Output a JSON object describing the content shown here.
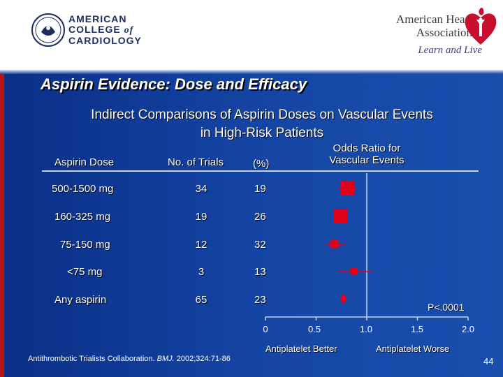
{
  "header": {
    "acc_line1": "AMERICAN",
    "acc_line2": "COLLEGE",
    "acc_of": "of",
    "acc_line3": "CARDIOLOGY",
    "aha_line1": "American Heart",
    "aha_line2": "Association",
    "aha_tagline": "Learn and Live",
    "accent_red": "#c8102e"
  },
  "title": "Aspirin Evidence: Dose and Efficacy",
  "subtitle_line1": "Indirect Comparisons of Aspirin Doses on Vascular Events",
  "subtitle_line2": "in High-Risk Patients",
  "columns": {
    "dose": "Aspirin Dose",
    "trials": "No. of Trials",
    "pct": "(%)",
    "or_line1": "Odds Ratio for",
    "or_line2": "Vascular Events"
  },
  "rows": [
    {
      "dose": "500-1500 mg",
      "trials": "34",
      "pct": "19"
    },
    {
      "dose": "160-325 mg",
      "trials": "19",
      "pct": "26"
    },
    {
      "dose": "75-150 mg",
      "trials": "12",
      "pct": "32"
    },
    {
      "dose": "<75 mg",
      "trials": "3",
      "pct": "13"
    },
    {
      "dose": "Any aspirin",
      "trials": "65",
      "pct": "23"
    }
  ],
  "p_value": "P<.0001",
  "favor_left": "Antiplatelet Better",
  "favor_right": "Antiplatelet Worse",
  "citation_pre": "Antithrombotic Trialists Collaboration. ",
  "citation_journal": "BMJ.",
  "citation_post": " 2002;324:71-86",
  "slide_number": "44",
  "chart_data": {
    "type": "forest",
    "xlabel": "Odds Ratio for Vascular Events",
    "xlim": [
      0,
      2.0
    ],
    "x_ticks": [
      "0",
      "0.5",
      "1.0",
      "1.5",
      "2.0"
    ],
    "reference_line": 1.0,
    "categories": [
      "500-1500 mg",
      "160-325 mg",
      "75-150 mg",
      "<75 mg",
      "Any aspirin"
    ],
    "points": [
      {
        "label": "500-1500 mg",
        "or": 0.81,
        "ci": [
          0.72,
          0.9
        ],
        "marker": "square"
      },
      {
        "label": "160-325 mg",
        "or": 0.74,
        "ci": [
          0.68,
          0.81
        ],
        "marker": "square"
      },
      {
        "label": "75-150 mg",
        "or": 0.68,
        "ci": [
          0.59,
          0.79
        ],
        "marker": "square"
      },
      {
        "label": "<75 mg",
        "or": 0.87,
        "ci": [
          0.71,
          1.06
        ],
        "marker": "square"
      },
      {
        "label": "Any aspirin",
        "or": 0.77,
        "ci": [
          0.74,
          0.8
        ],
        "marker": "diamond"
      }
    ],
    "colors": {
      "point": "#e2001a",
      "axis": "#c9d3e6"
    }
  }
}
